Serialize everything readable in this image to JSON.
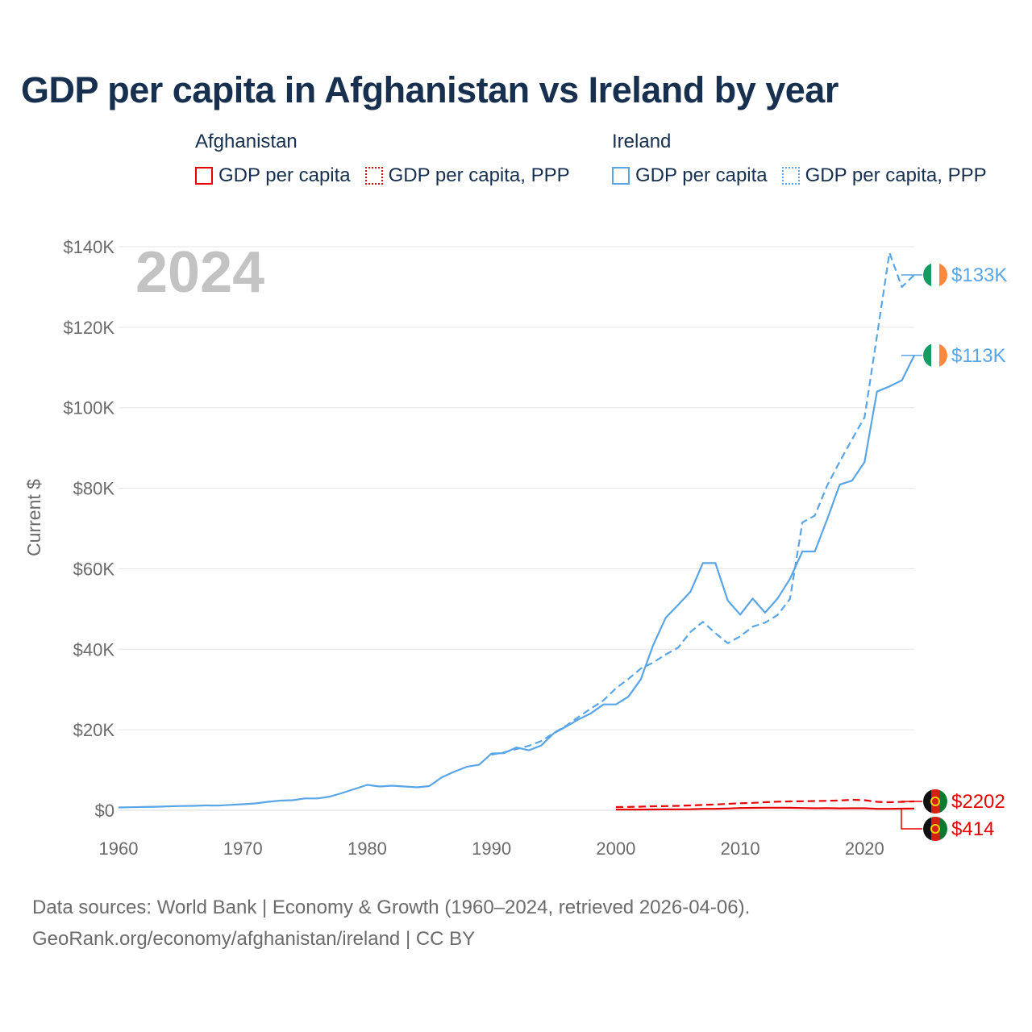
{
  "title": "GDP per capita in Afghanistan vs Ireland by year",
  "legend": {
    "groups": [
      {
        "name": "Afghanistan",
        "color": "#e60000",
        "items": [
          {
            "label": "GDP per capita",
            "style": "solid"
          },
          {
            "label": "GDP per capita, PPP",
            "style": "dotted"
          }
        ]
      },
      {
        "name": "Ireland",
        "color": "#5aa5e6",
        "items": [
          {
            "label": "GDP per capita",
            "style": "solid"
          },
          {
            "label": "GDP per capita, PPP",
            "style": "dotted"
          }
        ]
      }
    ]
  },
  "chart_data": {
    "type": "line",
    "year_label": "2024",
    "ylabel": "Current $",
    "ylim": [
      0,
      140000
    ],
    "xlim": [
      1960,
      2024
    ],
    "y_ticks": [
      0,
      20000,
      40000,
      60000,
      80000,
      100000,
      120000,
      140000
    ],
    "y_tick_labels": [
      "$0",
      "$20K",
      "$40K",
      "$60K",
      "$80K",
      "$100K",
      "$120K",
      "$140K"
    ],
    "x_ticks": [
      1960,
      1970,
      1980,
      1990,
      2000,
      2010,
      2020
    ],
    "x_tick_labels": [
      "1960",
      "1970",
      "1980",
      "1990",
      "2000",
      "2010",
      "2020"
    ],
    "gridlines": true,
    "series": [
      {
        "name": "Ireland GDP per capita",
        "country": "Ireland",
        "color": "#5aa5e6",
        "dash": "solid",
        "end_label": "$113K",
        "x": [
          1960,
          1961,
          1962,
          1963,
          1964,
          1965,
          1966,
          1967,
          1968,
          1969,
          1970,
          1971,
          1972,
          1973,
          1974,
          1975,
          1976,
          1977,
          1978,
          1979,
          1980,
          1981,
          1982,
          1983,
          1984,
          1985,
          1986,
          1987,
          1988,
          1989,
          1990,
          1991,
          1992,
          1993,
          1994,
          1995,
          1996,
          1997,
          1998,
          1999,
          2000,
          2001,
          2002,
          2003,
          2004,
          2005,
          2006,
          2007,
          2008,
          2009,
          2010,
          2011,
          2012,
          2013,
          2014,
          2015,
          2016,
          2017,
          2018,
          2019,
          2020,
          2021,
          2022,
          2023,
          2024
        ],
        "values": [
          700,
          760,
          820,
          880,
          990,
          1060,
          1110,
          1200,
          1160,
          1350,
          1500,
          1700,
          2100,
          2400,
          2500,
          2950,
          2950,
          3400,
          4300,
          5300,
          6300,
          5900,
          6100,
          5900,
          5700,
          6000,
          8200,
          9600,
          10800,
          11300,
          14100,
          14200,
          15600,
          14900,
          16100,
          19100,
          20800,
          22600,
          24100,
          26300,
          26300,
          28200,
          32500,
          41000,
          47800,
          51000,
          54300,
          61400,
          61400,
          52100,
          48600,
          52600,
          49100,
          52600,
          57500,
          64300,
          64300,
          72300,
          80900,
          81900,
          86500,
          104000,
          105300,
          106800,
          113000
        ]
      },
      {
        "name": "Ireland GDP per capita, PPP",
        "country": "Ireland",
        "color": "#5aa5e6",
        "dash": "dashed",
        "end_label": "$133K",
        "x": [
          1990,
          1991,
          1992,
          1993,
          1994,
          1995,
          1996,
          1997,
          1998,
          1999,
          2000,
          2001,
          2002,
          2003,
          2004,
          2005,
          2006,
          2007,
          2008,
          2009,
          2010,
          2011,
          2012,
          2013,
          2014,
          2015,
          2016,
          2017,
          2018,
          2019,
          2020,
          2021,
          2022,
          2023,
          2024
        ],
        "values": [
          13800,
          14400,
          15200,
          16000,
          17200,
          19200,
          21000,
          23200,
          25300,
          27300,
          30300,
          32600,
          35200,
          36700,
          38700,
          40400,
          44300,
          46800,
          44000,
          41500,
          43200,
          45600,
          46600,
          48500,
          52500,
          71500,
          73200,
          80700,
          86600,
          92200,
          97600,
          117800,
          138500,
          130000,
          133000
        ]
      },
      {
        "name": "Afghanistan GDP per capita",
        "country": "Afghanistan",
        "color": "#e60000",
        "dash": "solid",
        "end_label": "$414",
        "x": [
          2000,
          2001,
          2002,
          2003,
          2004,
          2005,
          2006,
          2007,
          2008,
          2009,
          2010,
          2011,
          2012,
          2013,
          2014,
          2015,
          2016,
          2017,
          2018,
          2019,
          2020,
          2021,
          2022,
          2023,
          2024
        ],
        "values": [
          180,
          170,
          190,
          200,
          220,
          250,
          270,
          360,
          370,
          440,
          560,
          600,
          650,
          640,
          620,
          570,
          510,
          520,
          490,
          500,
          510,
          360,
          360,
          410,
          414
        ]
      },
      {
        "name": "Afghanistan GDP per capita, PPP",
        "country": "Afghanistan",
        "color": "#e60000",
        "dash": "dashed",
        "end_label": "$2202",
        "x": [
          2000,
          2001,
          2002,
          2003,
          2004,
          2005,
          2006,
          2007,
          2008,
          2009,
          2010,
          2011,
          2012,
          2013,
          2014,
          2015,
          2016,
          2017,
          2018,
          2019,
          2020,
          2021,
          2022,
          2023,
          2024
        ],
        "values": [
          800,
          850,
          900,
          1000,
          1050,
          1100,
          1200,
          1350,
          1450,
          1600,
          1750,
          1850,
          2000,
          2150,
          2200,
          2250,
          2300,
          2350,
          2450,
          2600,
          2500,
          2100,
          2000,
          2100,
          2202
        ]
      }
    ]
  },
  "footer": {
    "line1": "Data sources: World Bank | Economy & Growth (1960–2024, retrieved 2026-04-06).",
    "line2": "GeoRank.org/economy/afghanistan/ireland | CC BY"
  }
}
